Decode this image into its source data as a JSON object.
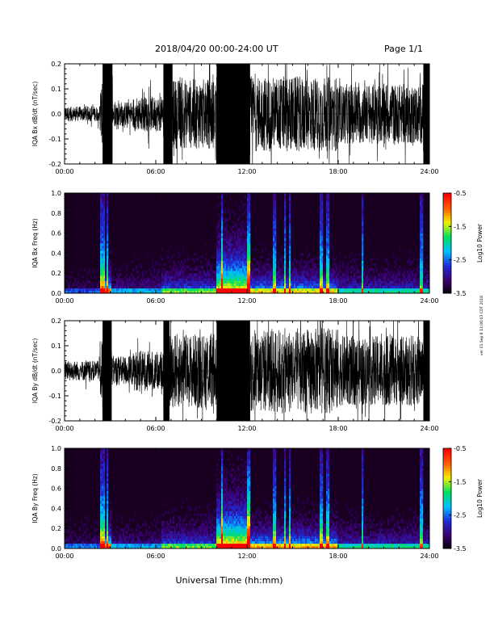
{
  "header": {
    "title": "2018/04/20  00:00-24:00 UT",
    "page": "Page 1/1"
  },
  "footer": {
    "xlabel": "Universal Time (hh:mm)"
  },
  "side_note": "ver 01 Sep 8 13:06:03 CDT 2018",
  "colors": {
    "trace": "#000000",
    "spectrogram_background": "#1a0020",
    "colorbar_stops": [
      "#000000",
      "#3b0070",
      "#1f2bd6",
      "#00c0ff",
      "#00e060",
      "#f0f000",
      "#ff6000",
      "#ff0000"
    ]
  },
  "chart_data": [
    {
      "id": "bx-dbdt",
      "type": "line",
      "ylabel": "IQA Bx dB/dt (nT/sec)",
      "x_ticks": [
        "00:00",
        "06:00",
        "12:00",
        "18:00",
        "24:00"
      ],
      "x_range_hours": [
        0,
        24
      ],
      "y_ticks": [
        "0.2",
        "0.1",
        "0.0",
        "-0.1",
        "-0.2"
      ],
      "ylim": [
        -0.2,
        0.2
      ],
      "envelope": [
        {
          "start": 0.0,
          "end": 2.3,
          "amp": 0.03
        },
        {
          "start": 2.3,
          "end": 2.5,
          "amp": 0.12
        },
        {
          "start": 2.5,
          "end": 3.15,
          "amp": 0.22
        },
        {
          "start": 3.15,
          "end": 4.5,
          "amp": 0.05
        },
        {
          "start": 4.5,
          "end": 6.5,
          "amp": 0.07
        },
        {
          "start": 6.5,
          "end": 7.1,
          "amp": 0.22
        },
        {
          "start": 7.1,
          "end": 10.0,
          "amp": 0.14
        },
        {
          "start": 10.0,
          "end": 12.2,
          "amp": 0.25
        },
        {
          "start": 12.2,
          "end": 18.0,
          "amp": 0.15
        },
        {
          "start": 18.0,
          "end": 23.6,
          "amp": 0.12
        },
        {
          "start": 23.6,
          "end": 24.0,
          "amp": 0.22
        }
      ]
    },
    {
      "id": "bx-freq",
      "type": "heatmap",
      "ylabel": "IQA Bx Freq (Hz)",
      "x_ticks": [
        "00:00",
        "06:00",
        "12:00",
        "18:00",
        "24:00"
      ],
      "y_ticks": [
        "1.0",
        "0.8",
        "0.6",
        "0.4",
        "0.2",
        "0.0"
      ],
      "ylim": [
        0,
        1.0
      ],
      "colorbar": {
        "label": "Log10 Power",
        "ticks": [
          "-0.5",
          "-1.5",
          "-2.5",
          "-3.5"
        ],
        "range": [
          -3.5,
          -0.5
        ]
      },
      "vertical_streaks_hours": [
        2.4,
        2.55,
        2.8,
        10.35,
        12.1,
        13.8,
        14.5,
        14.8,
        16.9,
        17.3,
        19.6,
        23.5
      ],
      "activity": [
        {
          "start": 0.0,
          "end": 2.3,
          "level": 0.15
        },
        {
          "start": 2.3,
          "end": 3.1,
          "level": 0.7
        },
        {
          "start": 3.1,
          "end": 6.4,
          "level": 0.25
        },
        {
          "start": 6.4,
          "end": 10.0,
          "level": 0.45
        },
        {
          "start": 10.0,
          "end": 12.2,
          "level": 0.95
        },
        {
          "start": 12.2,
          "end": 18.0,
          "level": 0.55
        },
        {
          "start": 18.0,
          "end": 24.0,
          "level": 0.35
        }
      ]
    },
    {
      "id": "by-dbdt",
      "type": "line",
      "ylabel": "IQA By dB/dt (nT/sec)",
      "x_ticks": [
        "00:00",
        "06:00",
        "12:00",
        "18:00",
        "24:00"
      ],
      "x_range_hours": [
        0,
        24
      ],
      "y_ticks": [
        "0.2",
        "0.1",
        "0.0",
        "-0.1",
        "-0.2"
      ],
      "ylim": [
        -0.2,
        0.2
      ],
      "envelope": [
        {
          "start": 0.0,
          "end": 2.3,
          "amp": 0.04
        },
        {
          "start": 2.3,
          "end": 2.5,
          "amp": 0.12
        },
        {
          "start": 2.5,
          "end": 3.1,
          "amp": 0.22
        },
        {
          "start": 3.1,
          "end": 4.5,
          "amp": 0.06
        },
        {
          "start": 4.5,
          "end": 6.5,
          "amp": 0.08
        },
        {
          "start": 6.5,
          "end": 6.9,
          "amp": 0.22
        },
        {
          "start": 6.9,
          "end": 10.0,
          "amp": 0.15
        },
        {
          "start": 10.0,
          "end": 12.2,
          "amp": 0.25
        },
        {
          "start": 12.2,
          "end": 18.0,
          "amp": 0.17
        },
        {
          "start": 18.0,
          "end": 23.6,
          "amp": 0.14
        },
        {
          "start": 23.6,
          "end": 24.0,
          "amp": 0.22
        }
      ]
    },
    {
      "id": "by-freq",
      "type": "heatmap",
      "ylabel": "IQA By Freq (Hz)",
      "x_ticks": [
        "00:00",
        "06:00",
        "12:00",
        "18:00",
        "24:00"
      ],
      "y_ticks": [
        "1.0",
        "0.8",
        "0.6",
        "0.4",
        "0.2",
        "0.0"
      ],
      "ylim": [
        0,
        1.0
      ],
      "colorbar": {
        "label": "Log10 Power",
        "ticks": [
          "-0.5",
          "-1.5",
          "-2.5",
          "-3.5"
        ],
        "range": [
          -3.5,
          -0.5
        ]
      },
      "vertical_streaks_hours": [
        2.4,
        2.55,
        2.8,
        10.35,
        12.1,
        13.8,
        14.5,
        14.8,
        16.9,
        17.3,
        19.6,
        23.5
      ],
      "activity": [
        {
          "start": 0.0,
          "end": 2.3,
          "level": 0.2
        },
        {
          "start": 2.3,
          "end": 3.1,
          "level": 0.7
        },
        {
          "start": 3.1,
          "end": 6.4,
          "level": 0.25
        },
        {
          "start": 6.4,
          "end": 10.0,
          "level": 0.45
        },
        {
          "start": 10.0,
          "end": 12.2,
          "level": 1.0
        },
        {
          "start": 12.2,
          "end": 18.0,
          "level": 0.6
        },
        {
          "start": 18.0,
          "end": 24.0,
          "level": 0.35
        }
      ]
    }
  ]
}
